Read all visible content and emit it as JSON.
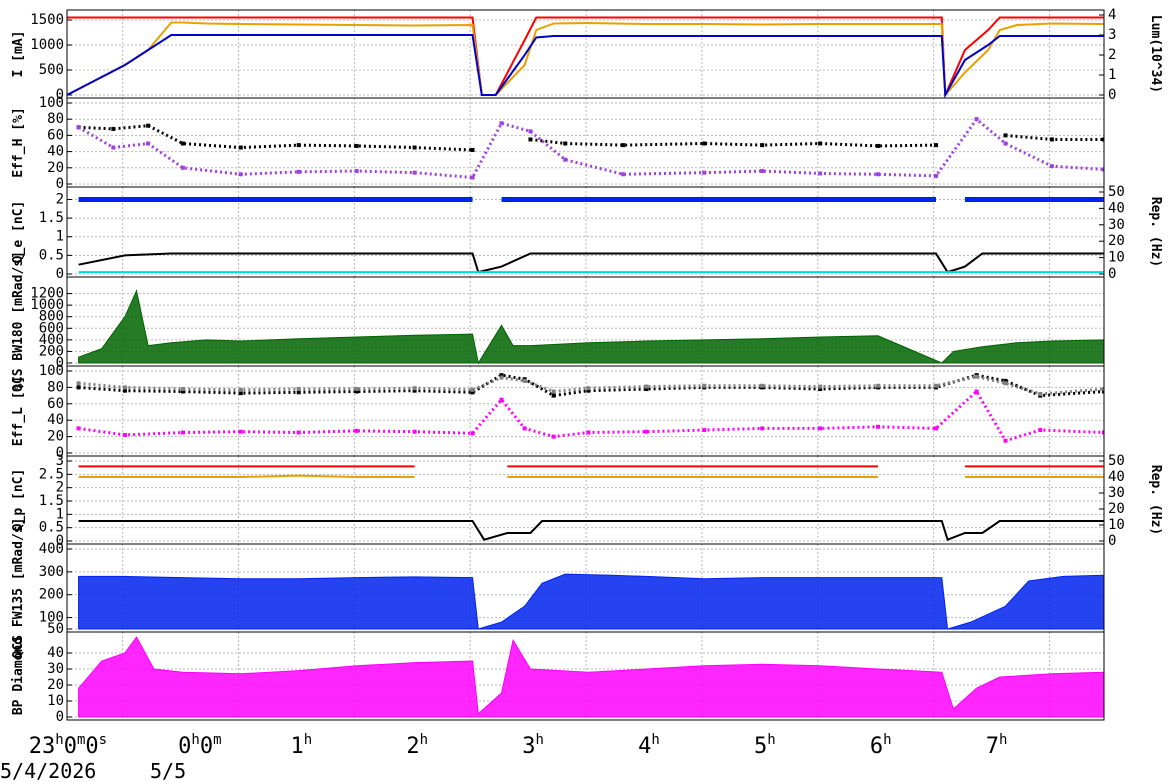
{
  "date_labels": {
    "start": "5/4/2026",
    "next": "5/5"
  },
  "x_tick_labels": [
    {
      "t": 0,
      "main": "23",
      "sup": "h",
      "rest": "0",
      "sup2": "m",
      "rest2": "0",
      "sup3": "s"
    },
    {
      "t": 1,
      "main": "0",
      "sup": "h",
      "rest": "0",
      "sup2": "m",
      "rest2": "",
      "sup3": ""
    },
    {
      "t": 2,
      "main": "1",
      "sup": "h",
      "rest": "",
      "sup2": "",
      "rest2": "",
      "sup3": ""
    },
    {
      "t": 3,
      "main": "2",
      "sup": "h",
      "rest": "",
      "sup2": "",
      "rest2": "",
      "sup3": ""
    },
    {
      "t": 4,
      "main": "3",
      "sup": "h",
      "rest": "",
      "sup2": "",
      "rest2": "",
      "sup3": ""
    },
    {
      "t": 5,
      "main": "4",
      "sup": "h",
      "rest": "",
      "sup2": "",
      "rest2": "",
      "sup3": ""
    },
    {
      "t": 6,
      "main": "5",
      "sup": "h",
      "rest": "",
      "sup2": "",
      "rest2": "",
      "sup3": ""
    },
    {
      "t": 7,
      "main": "6",
      "sup": "h",
      "rest": "",
      "sup2": "",
      "rest2": "",
      "sup3": ""
    },
    {
      "t": 8,
      "main": "7",
      "sup": "h",
      "rest": "",
      "sup2": "",
      "rest2": "",
      "sup3": ""
    }
  ],
  "colors": {
    "red": "#ff0000",
    "orange": "#e8a000",
    "navy": "#0000cc",
    "black": "#000000",
    "purple": "#a040e0",
    "blue": "#0022ee",
    "cyan": "#00dddd",
    "green": "#006400",
    "gray": "#808080",
    "magenta": "#ff00ff"
  },
  "chart_data": [
    {
      "type": "line",
      "id": "current",
      "ylabel": "I [mA]",
      "ylim": [
        0,
        1600
      ],
      "yticks": [
        "0",
        "500",
        "1000",
        "1500"
      ],
      "right_ylabel": "Lum(10^34)",
      "right_ylim": [
        0,
        4
      ],
      "right_yticks": [
        "0",
        "1",
        "2",
        "3",
        "4"
      ],
      "x_hours": [
        0,
        0.5,
        0.7,
        0.9,
        1.0,
        1.2,
        1.5,
        2.0,
        2.5,
        3.0,
        3.5,
        3.58,
        3.7,
        3.95,
        4.05,
        4.2,
        4.5,
        5.0,
        5.5,
        6.0,
        6.5,
        7.0,
        7.55,
        7.58,
        7.75,
        7.95,
        8.05,
        8.2,
        8.5,
        8.95
      ],
      "series": [
        {
          "color": "red",
          "values": [
            1550,
            1550,
            1550,
            1550,
            1550,
            1550,
            1550,
            1550,
            1550,
            1550,
            1550,
            0,
            0,
            1100,
            1550,
            1550,
            1550,
            1550,
            1550,
            1550,
            1550,
            1550,
            1550,
            0,
            900,
            1300,
            1550,
            1550,
            1550,
            1550
          ]
        },
        {
          "color": "orange",
          "values": [
            0,
            600,
            900,
            1450,
            1450,
            1430,
            1420,
            1410,
            1400,
            1390,
            1400,
            0,
            0,
            600,
            1300,
            1430,
            1440,
            1420,
            1420,
            1410,
            1420,
            1420,
            1420,
            0,
            450,
            900,
            1300,
            1400,
            1430,
            1420
          ]
        },
        {
          "color": "navy",
          "values": [
            0,
            600,
            900,
            1200,
            1200,
            1200,
            1200,
            1200,
            1200,
            1200,
            1200,
            0,
            0,
            800,
            1150,
            1180,
            1180,
            1180,
            1180,
            1180,
            1180,
            1180,
            1180,
            0,
            700,
            1000,
            1180,
            1180,
            1180,
            1180
          ]
        }
      ]
    },
    {
      "type": "scatter",
      "id": "eff_h",
      "ylabel": "Eff_H [%]",
      "ylim": [
        0,
        100
      ],
      "yticks": [
        "0",
        "20",
        "40",
        "60",
        "80",
        "100"
      ],
      "x_hours": [
        0.1,
        0.4,
        0.7,
        1.0,
        1.5,
        2.0,
        2.5,
        3.0,
        3.5,
        3.75,
        4.0,
        4.3,
        4.8,
        5.5,
        6.0,
        6.5,
        7.0,
        7.5,
        7.85,
        8.1,
        8.5,
        8.95
      ],
      "series": [
        {
          "color": "black",
          "values": [
            70,
            68,
            72,
            50,
            45,
            48,
            47,
            45,
            42,
            null,
            55,
            50,
            48,
            50,
            48,
            50,
            47,
            48,
            null,
            60,
            55,
            55
          ]
        },
        {
          "color": "purple",
          "values": [
            70,
            45,
            50,
            20,
            12,
            15,
            16,
            14,
            8,
            75,
            65,
            30,
            12,
            14,
            16,
            13,
            12,
            10,
            80,
            50,
            22,
            18
          ]
        }
      ]
    },
    {
      "type": "line",
      "id": "q_e",
      "ylabel": "Q_e [nC]",
      "ylim": [
        0,
        2.2
      ],
      "yticks": [
        "0",
        "0.5",
        "1",
        "1.5",
        "2"
      ],
      "right_ylabel": "Rep. (Hz)",
      "right_ylim": [
        0,
        50
      ],
      "right_yticks": [
        "0",
        "10",
        "20",
        "30",
        "40",
        "50"
      ],
      "x_hours": [
        0.1,
        0.5,
        0.9,
        1.5,
        2.5,
        3.5,
        3.55,
        3.75,
        4.0,
        4.5,
        5.5,
        6.5,
        7.5,
        7.6,
        7.75,
        7.9,
        8.5,
        8.95
      ],
      "series": [
        {
          "color": "blue",
          "values": [
            2.0,
            2.0,
            2.0,
            2.0,
            2.0,
            2.0,
            null,
            2.0,
            2.0,
            2.0,
            2.0,
            2.0,
            2.0,
            null,
            2.0,
            2.0,
            2.0,
            2.0
          ]
        },
        {
          "color": "black",
          "values": [
            0.25,
            0.5,
            0.55,
            0.55,
            0.55,
            0.55,
            0.05,
            0.2,
            0.55,
            0.55,
            0.55,
            0.55,
            0.55,
            0.05,
            0.2,
            0.55,
            0.55,
            0.55
          ]
        },
        {
          "color": "cyan",
          "values": [
            0.05,
            0.05,
            0.05,
            0.05,
            0.05,
            0.05,
            0.05,
            0.05,
            0.05,
            0.05,
            0.05,
            0.05,
            0.05,
            0.05,
            0.05,
            0.05,
            0.05,
            0.05
          ]
        }
      ]
    },
    {
      "type": "area",
      "id": "qcs_bw180",
      "ylabel": "QCS BW180 [mRad/s]",
      "ylim": [
        0,
        1400
      ],
      "yticks": [
        "0",
        "200",
        "400",
        "600",
        "800",
        "1000",
        "1200"
      ],
      "x_hours": [
        0.1,
        0.3,
        0.5,
        0.6,
        0.7,
        0.9,
        1.2,
        1.5,
        2.0,
        2.5,
        3.0,
        3.5,
        3.55,
        3.75,
        3.85,
        4.0,
        4.5,
        5.0,
        5.5,
        6.0,
        6.5,
        7.0,
        7.55,
        7.65,
        7.9,
        8.2,
        8.5,
        8.95
      ],
      "series": [
        {
          "color": "green",
          "values": [
            100,
            250,
            800,
            1250,
            300,
            350,
            400,
            380,
            420,
            450,
            480,
            500,
            0,
            650,
            300,
            300,
            350,
            380,
            400,
            420,
            450,
            470,
            0,
            200,
            280,
            350,
            380,
            400
          ]
        }
      ]
    },
    {
      "type": "scatter",
      "id": "eff_l",
      "ylabel": "Eff_L [%]",
      "ylim": [
        0,
        100
      ],
      "yticks": [
        "0",
        "20",
        "40",
        "60",
        "80",
        "100"
      ],
      "x_hours": [
        0.1,
        0.5,
        1.0,
        1.5,
        2.0,
        2.5,
        3.0,
        3.5,
        3.75,
        3.95,
        4.2,
        4.5,
        5.0,
        5.5,
        6.0,
        6.5,
        7.0,
        7.5,
        7.85,
        8.1,
        8.4,
        8.95
      ],
      "series": [
        {
          "color": "black",
          "values": [
            80,
            76,
            75,
            73,
            74,
            75,
            76,
            74,
            95,
            90,
            70,
            76,
            78,
            80,
            80,
            78,
            80,
            80,
            95,
            88,
            70,
            75
          ]
        },
        {
          "color": "gray",
          "values": [
            85,
            80,
            78,
            77,
            78,
            78,
            79,
            77,
            92,
            88,
            75,
            79,
            81,
            82,
            82,
            81,
            82,
            82,
            93,
            85,
            72,
            78
          ]
        },
        {
          "color": "magenta",
          "values": [
            30,
            22,
            25,
            26,
            25,
            27,
            26,
            24,
            65,
            30,
            20,
            25,
            26,
            28,
            30,
            30,
            32,
            30,
            75,
            15,
            28,
            25
          ]
        }
      ]
    },
    {
      "type": "line",
      "id": "q_p",
      "ylabel": "Q_p [nC]",
      "ylim": [
        0,
        3
      ],
      "yticks": [
        "0",
        "0.5",
        "1",
        "1.5",
        "2",
        "2.5",
        "3"
      ],
      "right_ylabel": "Rep. (Hz)",
      "right_ylim": [
        0,
        50
      ],
      "right_yticks": [
        "0",
        "10",
        "20",
        "30",
        "40",
        "50"
      ],
      "x_hours": [
        0.1,
        0.5,
        1.0,
        1.5,
        2.0,
        2.5,
        3.0,
        3.5,
        3.6,
        3.8,
        4.0,
        4.1,
        4.5,
        5.0,
        5.5,
        6.0,
        6.5,
        7.0,
        7.55,
        7.6,
        7.75,
        7.9,
        8.05,
        8.5,
        8.95
      ],
      "series": [
        {
          "color": "red",
          "values": [
            2.8,
            2.8,
            2.8,
            2.8,
            2.8,
            2.8,
            2.8,
            null,
            null,
            2.8,
            2.8,
            2.8,
            2.8,
            2.8,
            2.8,
            2.8,
            2.8,
            2.8,
            null,
            null,
            2.8,
            2.8,
            2.8,
            2.8,
            2.8
          ]
        },
        {
          "color": "orange",
          "values": [
            2.4,
            2.4,
            2.4,
            2.4,
            2.45,
            2.4,
            2.4,
            null,
            null,
            2.4,
            2.4,
            2.4,
            2.4,
            2.4,
            2.4,
            2.4,
            2.4,
            2.4,
            null,
            null,
            2.4,
            2.4,
            2.4,
            2.4,
            2.4
          ]
        },
        {
          "color": "black",
          "values": [
            0.75,
            0.75,
            0.75,
            0.75,
            0.75,
            0.75,
            0.75,
            0.75,
            0.05,
            0.3,
            0.3,
            0.75,
            0.75,
            0.75,
            0.75,
            0.75,
            0.75,
            0.75,
            0.75,
            0.05,
            0.3,
            0.3,
            0.75,
            0.75,
            0.75
          ]
        }
      ]
    },
    {
      "type": "area",
      "id": "qcs_fw135",
      "ylabel": "QCS FW135 [mRad/s]",
      "ylim": [
        50,
        400
      ],
      "yticks": [
        "50",
        "100",
        "200",
        "300",
        "400"
      ],
      "x_hours": [
        0.1,
        0.5,
        1.0,
        1.5,
        2.0,
        2.5,
        3.0,
        3.5,
        3.55,
        3.75,
        3.95,
        4.1,
        4.3,
        4.7,
        5.0,
        5.5,
        6.0,
        6.5,
        7.0,
        7.55,
        7.6,
        7.8,
        8.1,
        8.3,
        8.6,
        8.95
      ],
      "series": [
        {
          "color": "blue",
          "values": [
            280,
            280,
            275,
            270,
            270,
            275,
            278,
            275,
            50,
            80,
            150,
            250,
            290,
            285,
            280,
            270,
            275,
            275,
            275,
            275,
            50,
            80,
            150,
            260,
            280,
            285
          ]
        }
      ]
    },
    {
      "type": "area",
      "id": "bp_diamond",
      "ylabel": "BP Diamond",
      "ylim": [
        0,
        50
      ],
      "yticks": [
        "0",
        "10",
        "20",
        "30",
        "40"
      ],
      "x_hours": [
        0.1,
        0.3,
        0.5,
        0.6,
        0.75,
        1.0,
        1.5,
        2.0,
        2.5,
        3.0,
        3.5,
        3.55,
        3.75,
        3.85,
        4.0,
        4.5,
        5.0,
        5.5,
        6.0,
        6.5,
        7.0,
        7.55,
        7.65,
        7.85,
        8.05,
        8.5,
        8.95
      ],
      "series": [
        {
          "color": "magenta",
          "values": [
            18,
            35,
            40,
            50,
            30,
            28,
            27,
            29,
            32,
            34,
            35,
            2,
            15,
            48,
            30,
            28,
            30,
            32,
            33,
            32,
            30,
            28,
            5,
            18,
            25,
            27,
            28
          ]
        }
      ]
    }
  ]
}
